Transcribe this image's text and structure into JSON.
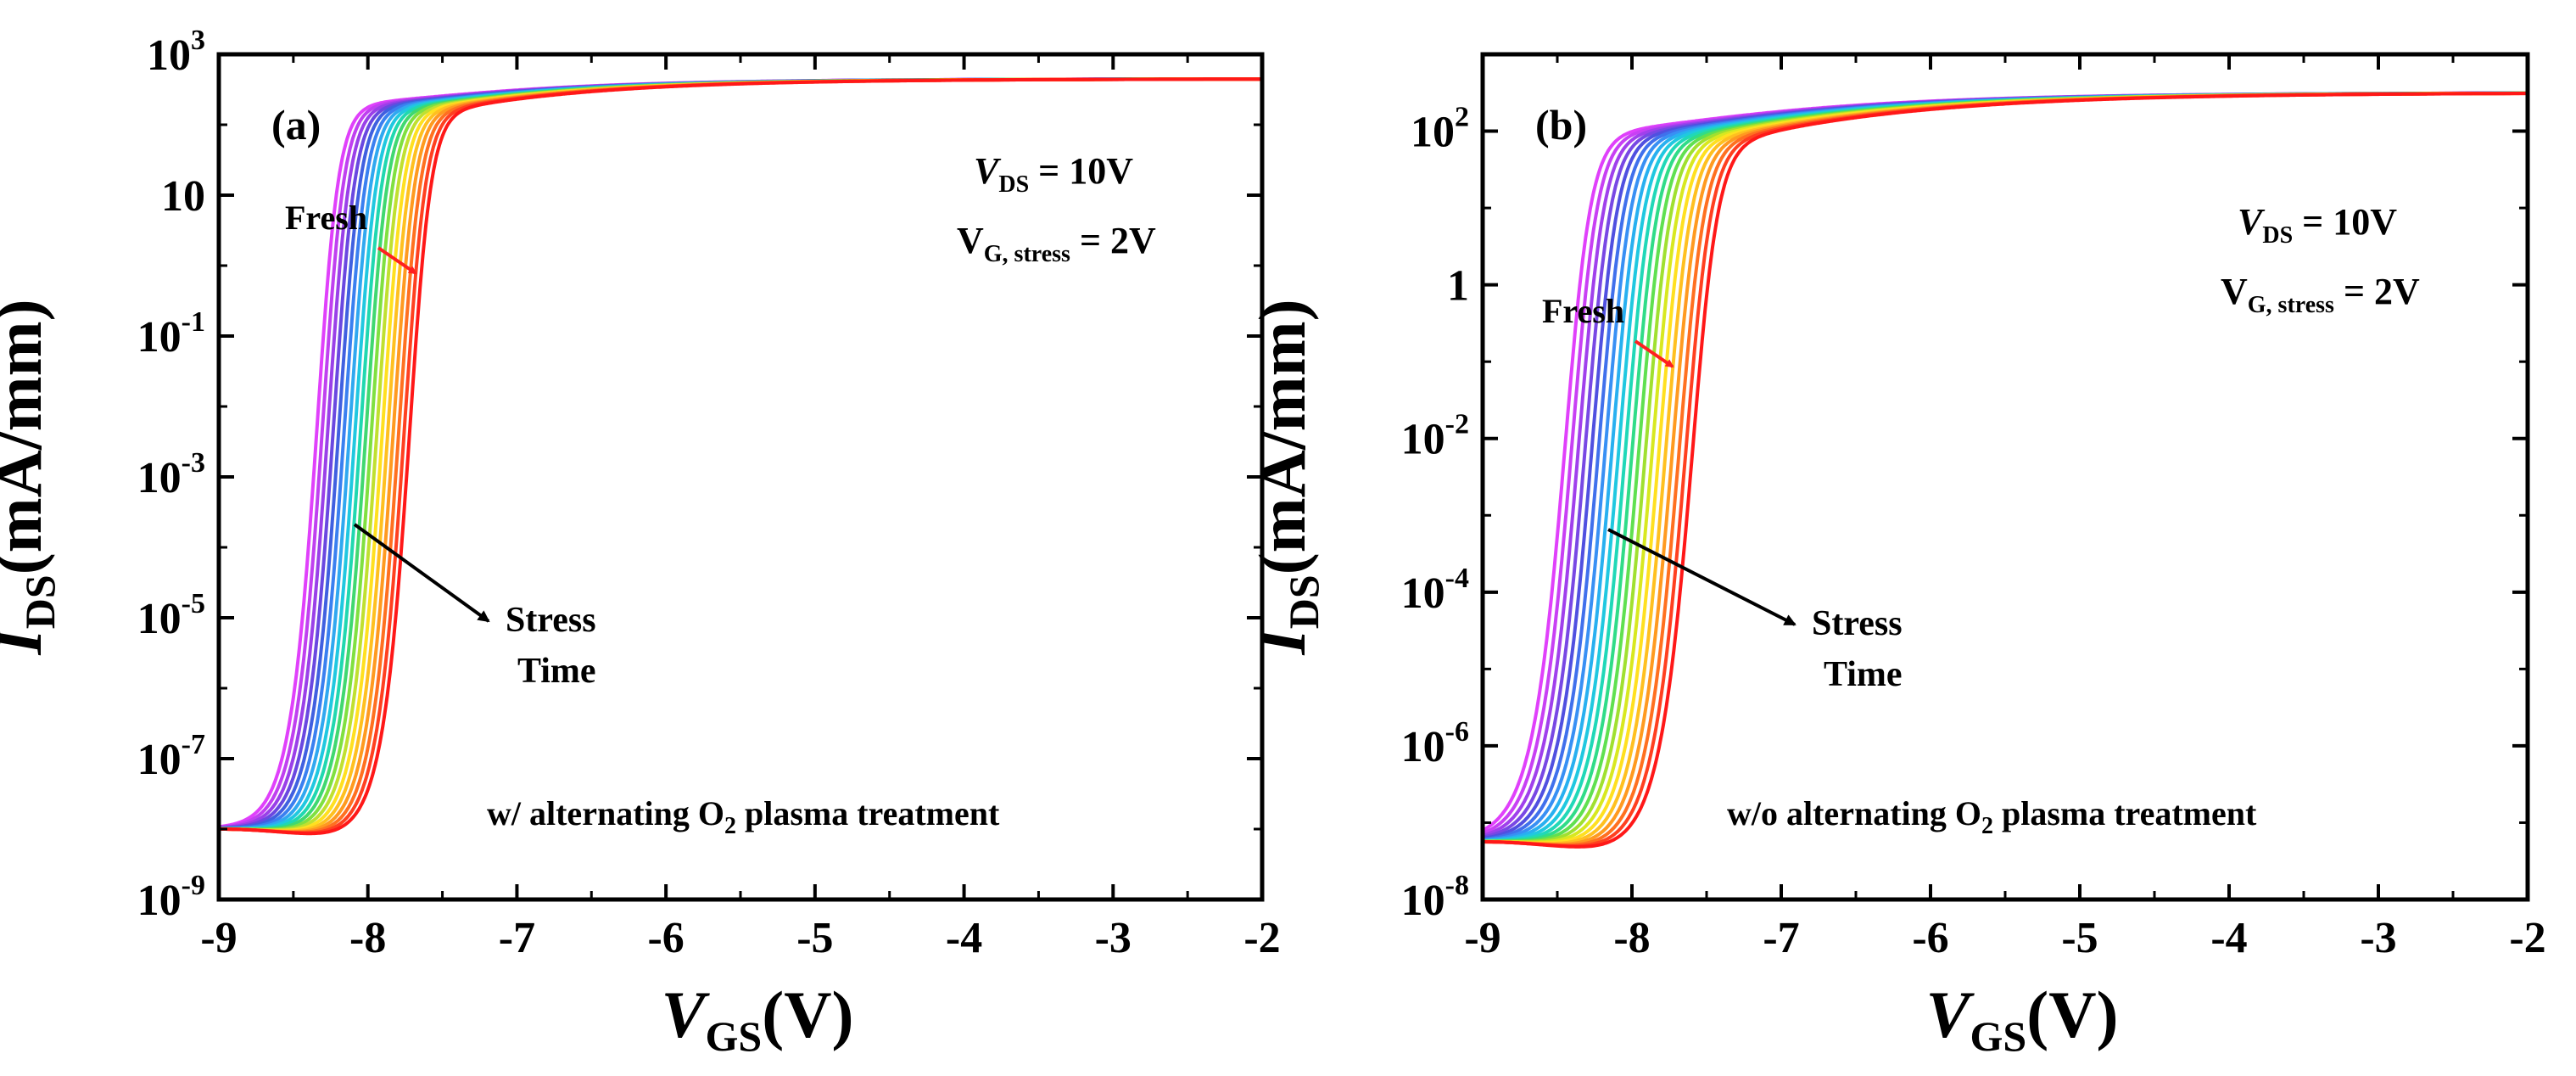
{
  "chart_data": [
    {
      "type": "line",
      "panel_label": "(a)",
      "xlabel": {
        "italic": "V",
        "sub": "GS",
        "unit": "(V)"
      },
      "ylabel": {
        "italic": "I",
        "sub": "DS",
        "unit": "(mA/mm)"
      },
      "scale_y": "log",
      "xlim": [
        -9,
        -2
      ],
      "ylim_exp": [
        -9,
        3
      ],
      "x_ticks": [
        -9,
        -8,
        -7,
        -6,
        -5,
        -4,
        -3,
        -2
      ],
      "x_tick_labels": [
        "-9",
        "-8",
        "-7",
        "-6",
        "-5",
        "-4",
        "-3",
        "-2"
      ],
      "y_ticks_exp": [
        -9,
        -7,
        -5,
        -3,
        -1,
        1,
        3
      ],
      "y_tick_labels": [
        {
          "base": "10",
          "exp": "-9"
        },
        {
          "base": "10",
          "exp": "-7"
        },
        {
          "base": "10",
          "exp": "-5"
        },
        {
          "base": "10",
          "exp": "-3"
        },
        {
          "base": "10",
          "exp": "-1"
        },
        {
          "base": "10",
          "exp": ""
        },
        {
          "base": "10",
          "exp": "3"
        }
      ],
      "conditions": {
        "vds": {
          "italic": "V",
          "sub": "DS",
          "value": " = 10V"
        },
        "vg": {
          "main": "V",
          "sub": "G, stress",
          "value": " = 2V"
        }
      },
      "fresh_label": "Fresh",
      "stress_label_line1": "Stress",
      "stress_label_line2": "Time",
      "treatment": {
        "pre": "w/ alternating  O",
        "sub": "2",
        "post": " plasma treatment"
      },
      "series_count": 18,
      "curve_model": {
        "vth_fresh": -8.3,
        "vth_shift_total": 0.62,
        "floor_log": -8.25,
        "on_log": 2.1,
        "sat_log": 2.65,
        "slope": 15,
        "slow_rate": 0.95
      },
      "colors": [
        "#e040fb",
        "#c040f0",
        "#9a40e8",
        "#6a48e0",
        "#4060e0",
        "#3a80f0",
        "#30a8f0",
        "#20c8e0",
        "#20d8b0",
        "#40d870",
        "#80e040",
        "#c0e030",
        "#ffe020",
        "#ffc020",
        "#ff9a20",
        "#ff7020",
        "#ff4020",
        "#ff1818"
      ],
      "fresh_arrow_color": "#ff2020",
      "stress_arrow_color": "#000000"
    },
    {
      "type": "line",
      "panel_label": "(b)",
      "xlabel": {
        "italic": "V",
        "sub": "GS",
        "unit": "(V)"
      },
      "ylabel": {
        "italic": "I",
        "sub": "DS",
        "unit": "(mA/mm)"
      },
      "scale_y": "log",
      "xlim": [
        -9,
        -2
      ],
      "ylim_exp": [
        -8,
        3
      ],
      "x_ticks": [
        -9,
        -8,
        -7,
        -6,
        -5,
        -4,
        -3,
        -2
      ],
      "x_tick_labels": [
        "-9",
        "-8",
        "-7",
        "-6",
        "-5",
        "-4",
        "-3",
        "-2"
      ],
      "y_ticks_exp": [
        -8,
        -6,
        -4,
        -2,
        0,
        2
      ],
      "y_tick_labels": [
        {
          "base": "10",
          "exp": "-8"
        },
        {
          "base": "10",
          "exp": "-6"
        },
        {
          "base": "10",
          "exp": "-4"
        },
        {
          "base": "10",
          "exp": "-2"
        },
        {
          "base": "1",
          "exp": ""
        },
        {
          "base": "10",
          "exp": "2"
        }
      ],
      "conditions": {
        "vds": {
          "italic": "V",
          "sub": "DS",
          "value": " = 10V"
        },
        "vg": {
          "main": "V",
          "sub": "G, stress",
          "value": " = 2V"
        }
      },
      "fresh_label": "Fresh",
      "stress_label_line1": "Stress",
      "stress_label_line2": "Time",
      "treatment": {
        "pre": "w/o alternating  O",
        "sub": "2",
        "post": " plasma treatment"
      },
      "series_count": 20,
      "curve_model": {
        "vth_fresh": -8.4,
        "vth_shift_total": 0.85,
        "floor_log": -7.5,
        "on_log": 1.75,
        "sat_log": 2.5,
        "slope": 12.5,
        "slow_rate": 0.8
      },
      "colors": [
        "#e040fb",
        "#c840f4",
        "#a040ec",
        "#7848e4",
        "#5050e0",
        "#4070ec",
        "#3890f4",
        "#28b0f0",
        "#20c8e0",
        "#20d8b8",
        "#30dc88",
        "#60e050",
        "#a0e030",
        "#d8e820",
        "#ffe020",
        "#ffc020",
        "#ff9a20",
        "#ff7020",
        "#ff4020",
        "#ff1818"
      ],
      "fresh_arrow_color": "#ff2020",
      "stress_arrow_color": "#000000"
    }
  ]
}
